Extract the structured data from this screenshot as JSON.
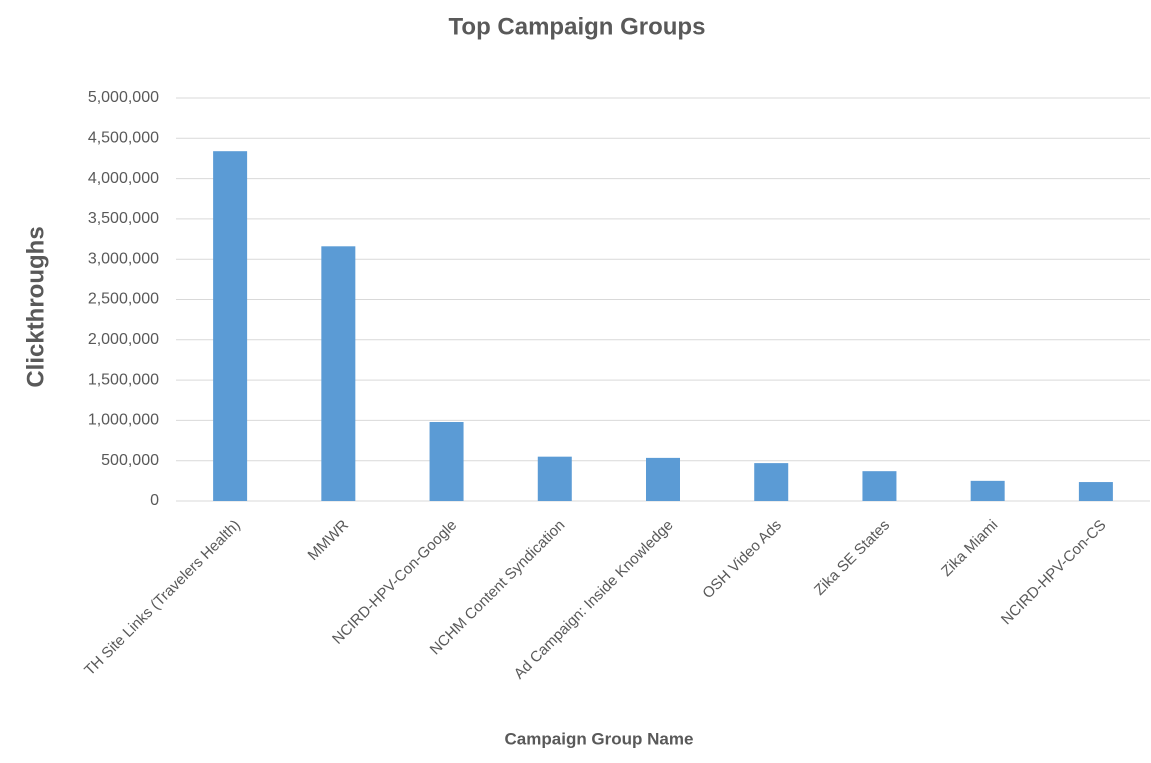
{
  "chart_data": {
    "type": "bar",
    "title": "Top Campaign Groups",
    "x_label": "Campaign Group Name",
    "y_label": "Clickthroughs",
    "categories": [
      "TH Site Links (Travelers Health)",
      "MMWR",
      "NCIRD-HPV-Con-Google",
      "NCHM Content Syndication",
      "Ad Campaign: Inside Knowledge",
      "OSH Video Ads",
      "Zika SE States",
      "Zika Miami",
      "NCIRD-HPV-Con-CS"
    ],
    "values": [
      4340000,
      3160000,
      980000,
      550000,
      535000,
      470000,
      370000,
      250000,
      235000
    ],
    "color": "#5b9bd5",
    "ylim": [
      0,
      5000000
    ],
    "yticks": [
      0,
      {
        "value": 500000,
        "label": "500,000"
      },
      {
        "value": 1000000,
        "label": "1,000,000"
      },
      {
        "value": 1500000,
        "label": "1,500,000"
      },
      {
        "value": 2000000,
        "label": "2,000,000"
      },
      {
        "value": 2500000,
        "label": "2,500,000"
      },
      {
        "value": 3000000,
        "label": "3,000,000"
      },
      {
        "value": 3500000,
        "label": "3,500,000"
      },
      {
        "value": 4000000,
        "label": "4,000,000"
      },
      {
        "value": 4500000,
        "label": "4,500,000"
      },
      {
        "value": 5000000,
        "label": "5,000,000"
      }
    ],
    "grid": true
  }
}
